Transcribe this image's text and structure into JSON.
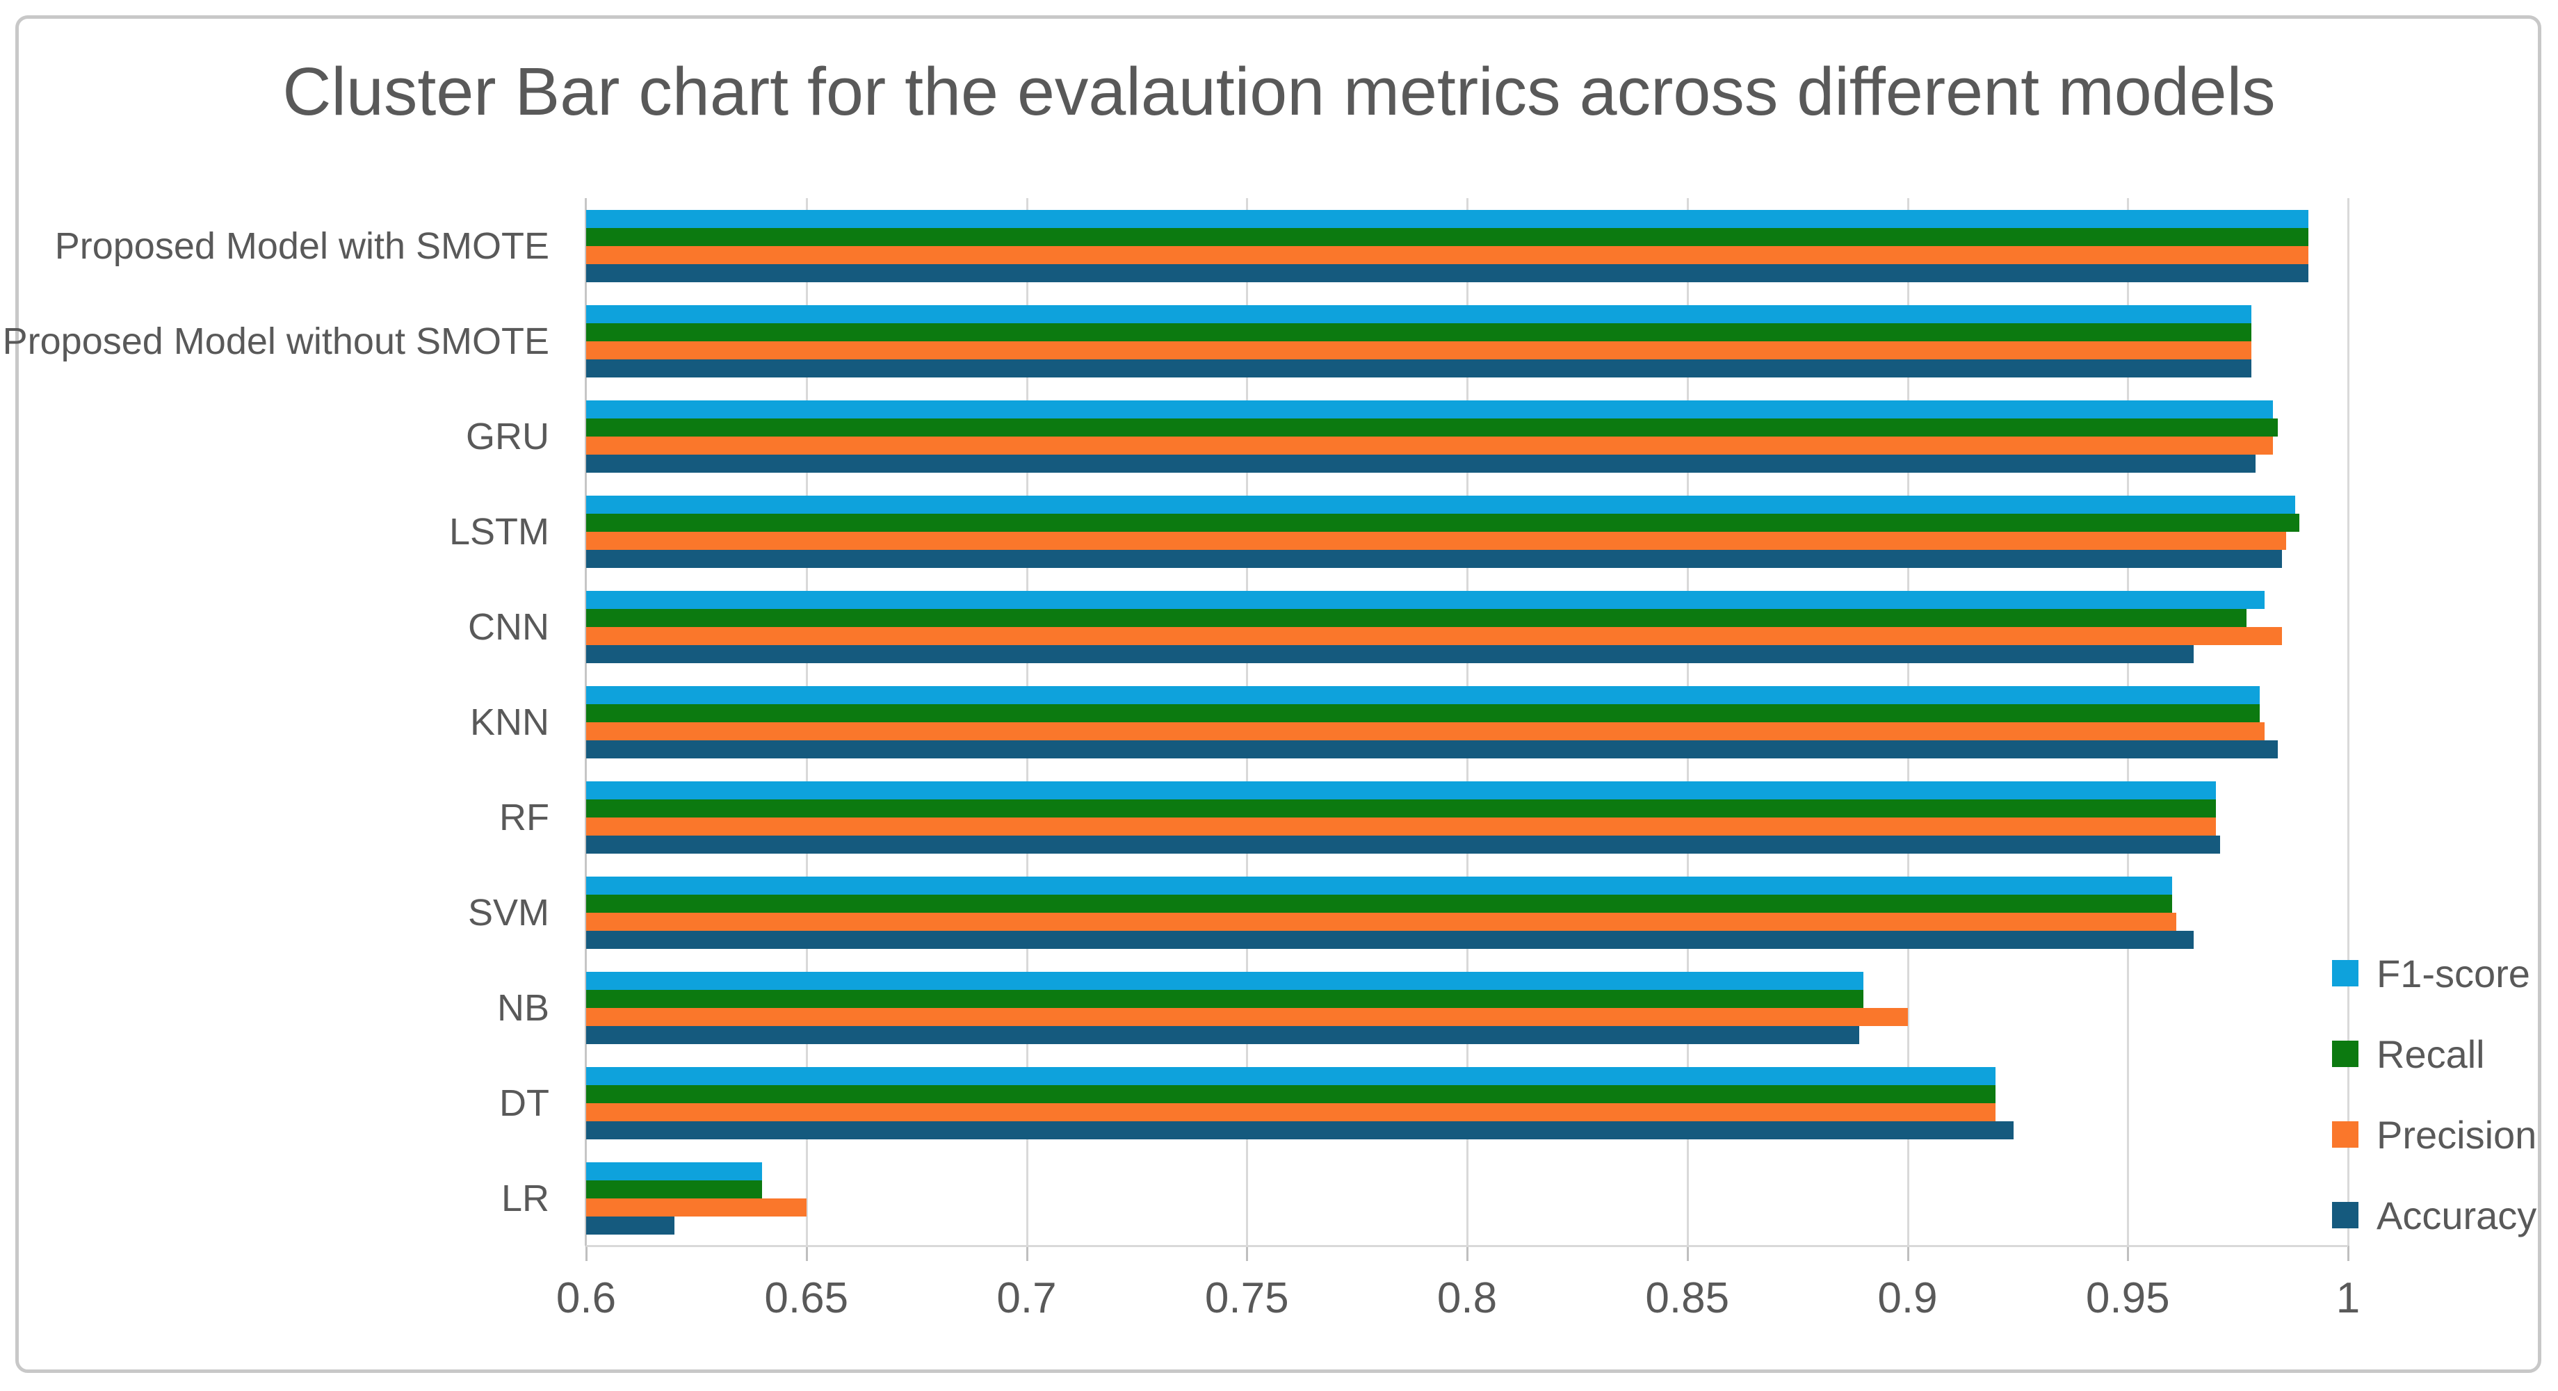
{
  "title": "Cluster Bar chart for the evalaution metrics across different models",
  "chart_data": {
    "type": "bar",
    "orientation": "horizontal",
    "title": "Cluster Bar chart for the evalaution metrics across different models",
    "categories": [
      "Proposed Model with SMOTE",
      "Proposed Model without SMOTE",
      "GRU",
      "LSTM",
      "CNN",
      "KNN",
      "RF",
      "SVM",
      "NB",
      "DT",
      "LR"
    ],
    "series": [
      {
        "name": "F1-score",
        "color": "#0EA2DC",
        "values": [
          0.991,
          0.978,
          0.983,
          0.988,
          0.981,
          0.98,
          0.97,
          0.96,
          0.89,
          0.92,
          0.64
        ]
      },
      {
        "name": "Recall",
        "color": "#0C7A10",
        "values": [
          0.991,
          0.978,
          0.984,
          0.989,
          0.977,
          0.98,
          0.97,
          0.96,
          0.89,
          0.92,
          0.64
        ]
      },
      {
        "name": "Precision",
        "color": "#FA772B",
        "values": [
          0.991,
          0.978,
          0.983,
          0.986,
          0.985,
          0.981,
          0.97,
          0.961,
          0.9,
          0.92,
          0.65
        ]
      },
      {
        "name": "Accuracy",
        "color": "#155A7E",
        "values": [
          0.991,
          0.978,
          0.979,
          0.985,
          0.965,
          0.984,
          0.971,
          0.965,
          0.889,
          0.924,
          0.62
        ]
      }
    ],
    "xlim": [
      0.6,
      1.0
    ],
    "xticks": [
      0.6,
      0.65,
      0.7,
      0.75,
      0.8,
      0.85,
      0.9,
      0.95,
      1
    ],
    "xtick_labels": [
      "0.6",
      "0.65",
      "0.7",
      "0.75",
      "0.8",
      "0.85",
      "0.9",
      "0.95",
      "1"
    ],
    "ylabel": "",
    "xlabel": "",
    "grid": true,
    "legend_position": "right-bottom",
    "legend": [
      "F1-score",
      "Recall",
      "Precision",
      "Accuracy"
    ]
  },
  "style": {
    "text_color": "#595959",
    "gridline_color": "#D9D9D9",
    "axis_color": "#BFBFBF",
    "frame_color": "#C8C8C8",
    "background": "#FFFFFF"
  }
}
